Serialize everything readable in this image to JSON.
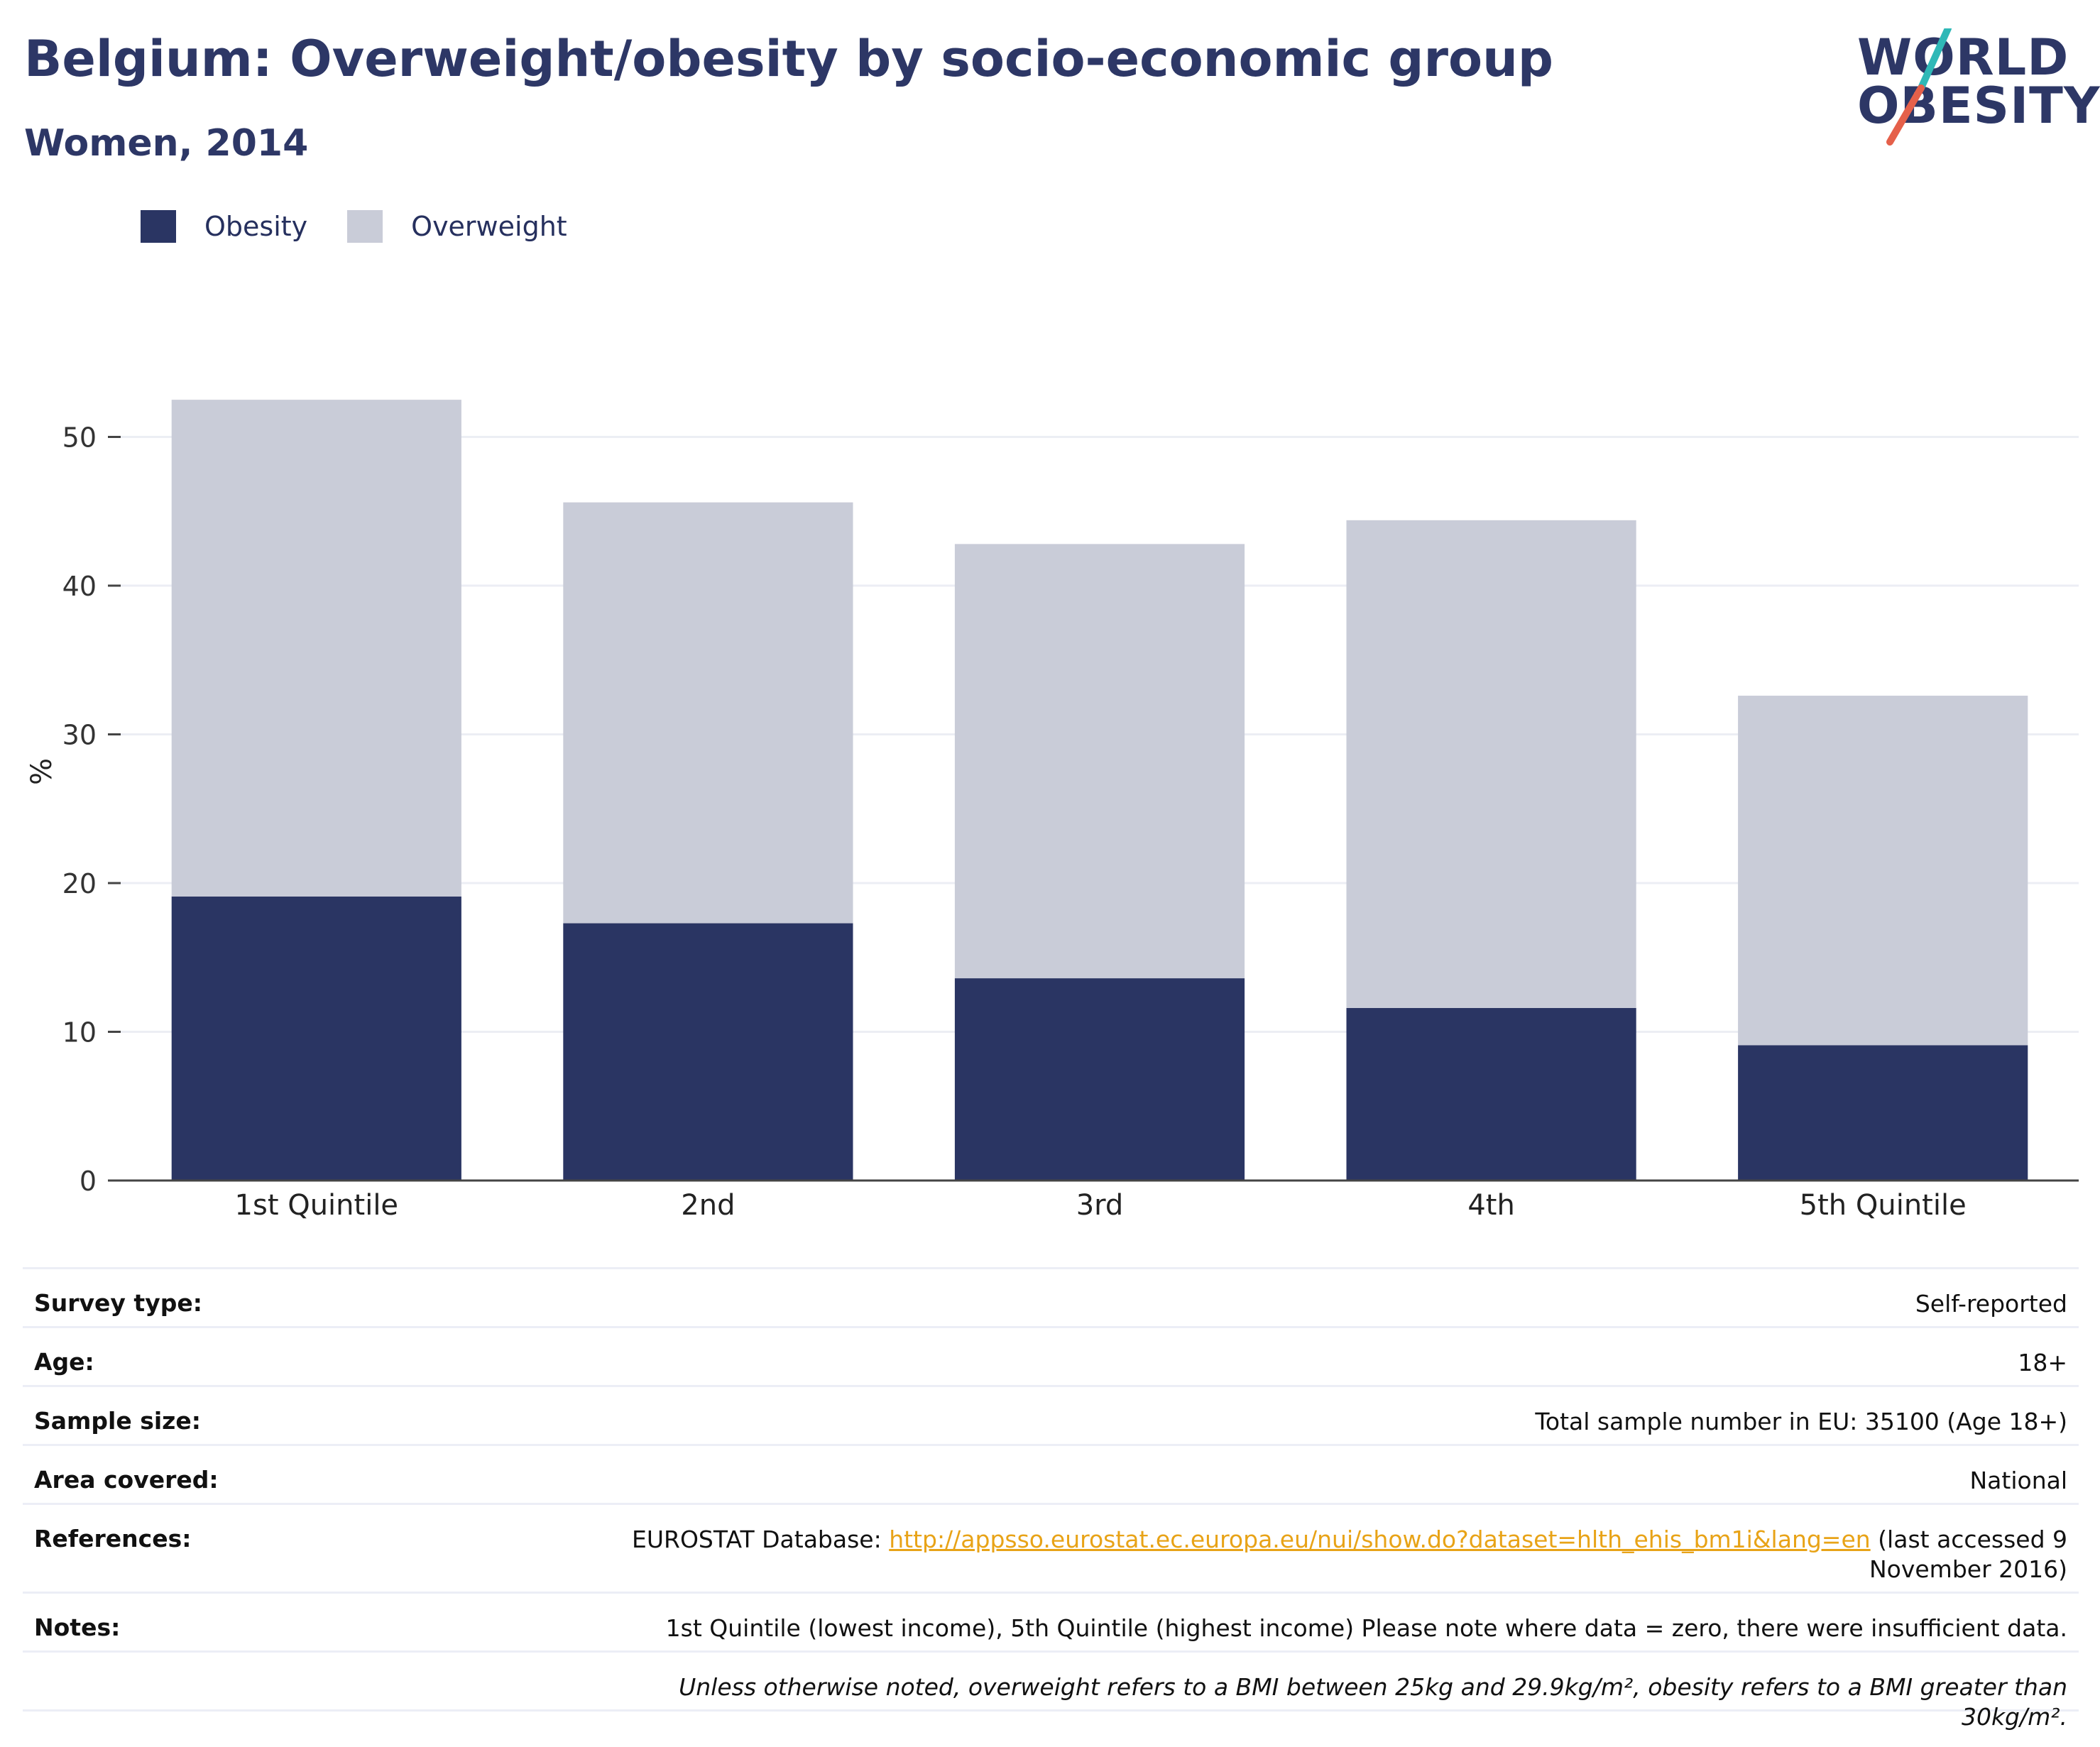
{
  "header": {
    "title": "Belgium: Overweight/obesity by socio-economic group",
    "subtitle": "Women, 2014"
  },
  "logo": {
    "line1": "WORLD",
    "line2": "OBESITY"
  },
  "colors": {
    "obesity": "#2a3563",
    "overweight": "#c9ccd8",
    "text": "#2d3766",
    "link": "#e8a317",
    "logo_teal": "#2fb8b7",
    "logo_coral": "#e5604a",
    "grid": "#eceef4",
    "axis": "#444444"
  },
  "chart_data": {
    "type": "bar",
    "stacked": true,
    "categories": [
      "1st Quintile",
      "2nd",
      "3rd",
      "4th",
      "5th Quintile"
    ],
    "series": [
      {
        "name": "Obesity",
        "values": [
          19.1,
          17.3,
          13.6,
          11.6,
          9.1
        ]
      },
      {
        "name": "Overweight",
        "values": [
          33.4,
          28.3,
          29.2,
          32.8,
          23.5
        ]
      }
    ],
    "totals": [
      52.5,
      45.6,
      42.8,
      44.4,
      32.6
    ],
    "ylabel": "%",
    "ylim": [
      0,
      55
    ],
    "yticks": [
      0,
      10,
      20,
      30,
      40,
      50
    ],
    "grid": true,
    "legend": "top-left"
  },
  "info": [
    {
      "key": "Survey type:",
      "value": "Self-reported"
    },
    {
      "key": "Age:",
      "value": "18+"
    },
    {
      "key": "Sample size:",
      "value": "Total sample number in EU: 35100 (Age 18+)"
    },
    {
      "key": "Area covered:",
      "value": "National"
    }
  ],
  "references": {
    "key": "References:",
    "prefix": "EUROSTAT Database: ",
    "link": "http://appsso.eurostat.ec.europa.eu/nui/show.do?dataset=hlth_ehis_bm1i&lang=en",
    "suffix": " (last accessed 9 November 2016)"
  },
  "notes": {
    "key": "Notes:",
    "value": "1st Quintile (lowest income), 5th Quintile (highest income) Please note where data = zero, there were insufficient data."
  },
  "footnote": "Unless otherwise noted, overweight refers to a BMI between 25kg and 29.9kg/m², obesity refers to a BMI greater than 30kg/m²."
}
